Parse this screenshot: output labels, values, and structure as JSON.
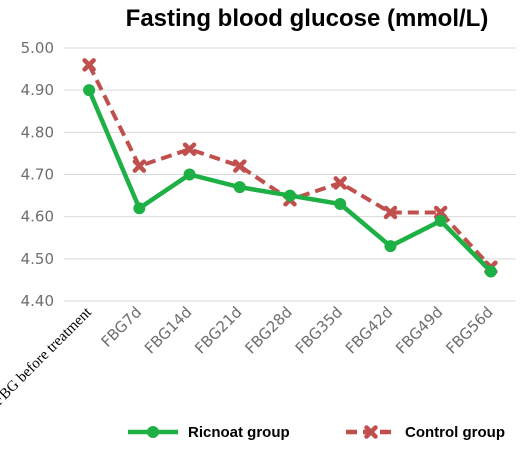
{
  "chart_data": {
    "type": "line",
    "title": "Fasting blood glucose (mmol/L)",
    "xlabel": "",
    "ylabel": "",
    "categories": [
      "FBG before treatment",
      "FBG7d",
      "FBG14d",
      "FBG21d",
      "FBG28d",
      "FBG35d",
      "FBG42d",
      "FBG49d",
      "FBG56d"
    ],
    "yticks": [
      "4.40",
      "4.50",
      "4.60",
      "4.70",
      "4.80",
      "4.90",
      "5.00"
    ],
    "ylim": [
      4.4,
      5.0
    ],
    "grid": true,
    "legend_position": "bottom",
    "series": [
      {
        "name": "Ricnoat group",
        "color": "#1db045",
        "line_style": "solid",
        "marker": "circle",
        "values": [
          4.9,
          4.62,
          4.7,
          4.67,
          4.65,
          4.63,
          4.53,
          4.59,
          4.47
        ]
      },
      {
        "name": "Control group",
        "color": "#c0504d",
        "line_style": "dashed",
        "marker": "x",
        "values": [
          4.96,
          4.72,
          4.76,
          4.72,
          4.64,
          4.68,
          4.61,
          4.61,
          4.48
        ]
      }
    ]
  }
}
